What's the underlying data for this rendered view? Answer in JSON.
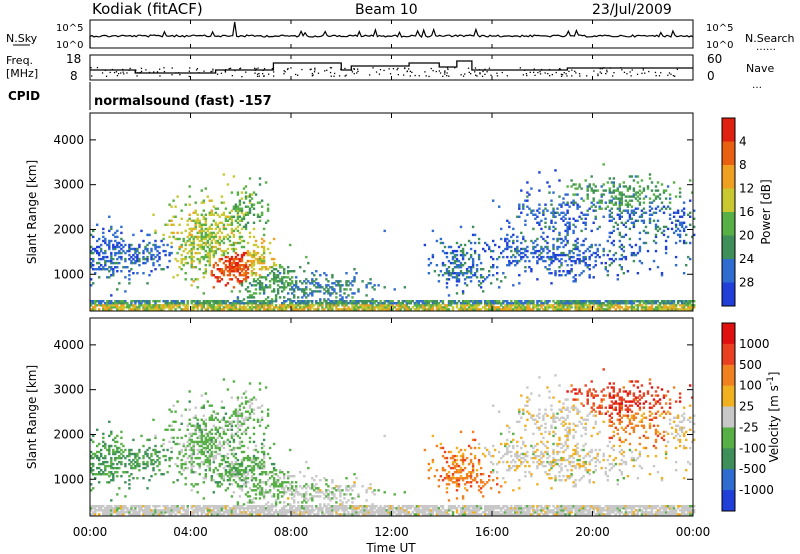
{
  "header": {
    "site": "Kodiak (fitACF)",
    "beam": "Beam 10",
    "date": "23/Jul/2009"
  },
  "strips": {
    "nsky_label": "N.Sky",
    "nsearch_label": "N.Search",
    "freq_label_1": "Freq.",
    "freq_label_2": "[MHz]",
    "nave_label": "Nave",
    "cpid_label": "CPID",
    "cpid_value": "normalsound (fast) -157",
    "noise_left_ticks": [
      "10^5",
      "10^0"
    ],
    "noise_right_ticks": [
      "10^5",
      "10^0"
    ],
    "freq_ticks": [
      "18",
      "8"
    ],
    "nave_ticks": [
      "60",
      "0"
    ]
  },
  "chart_data": [
    {
      "type": "heatmap",
      "name": "power",
      "ylabel": "Slant Range [km]",
      "ylim": [
        180,
        4600
      ],
      "yticks": [
        "1000",
        "2000",
        "3000",
        "4000"
      ],
      "colorbar": {
        "label": "Power [dB]",
        "ticks": [
          "4",
          "8",
          "12",
          "16",
          "20",
          "24",
          "28"
        ],
        "colors": [
          "#1f3fd8",
          "#2e6cd0",
          "#3f8f5a",
          "#56b046",
          "#c9c830",
          "#f0a020",
          "#e86010",
          "#e02010"
        ]
      }
    },
    {
      "type": "heatmap",
      "name": "velocity",
      "ylabel": "Slant Range [km]",
      "ylim": [
        180,
        4600
      ],
      "yticks": [
        "1000",
        "2000",
        "3000",
        "4000"
      ],
      "colorbar": {
        "label": "Velocity [m s^-1]",
        "ticks": [
          "1000",
          "500",
          "100",
          "25",
          "-25",
          "-100",
          "-500",
          "-1000"
        ],
        "colors": [
          "#1f3fd8",
          "#2e6cd0",
          "#3f8f5a",
          "#56b046",
          "#c8c8c8",
          "#f0b020",
          "#f08020",
          "#e84020",
          "#e01010"
        ]
      }
    }
  ],
  "time_axis": {
    "label": "Time UT",
    "ticks": [
      "00:00",
      "04:00",
      "08:00",
      "12:00",
      "16:00",
      "20:00",
      "00:00"
    ]
  }
}
